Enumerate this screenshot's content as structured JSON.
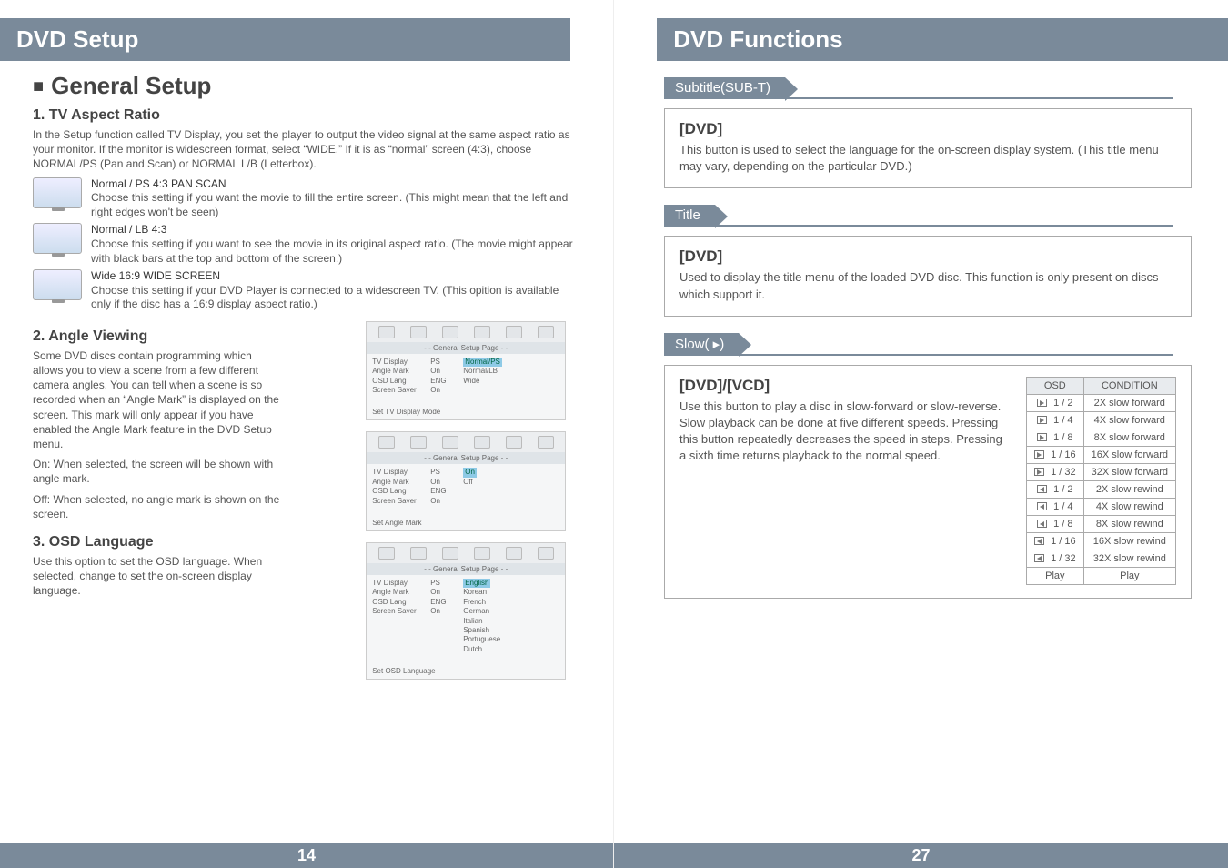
{
  "left": {
    "banner": "DVD Setup",
    "sectionTitle": "General Setup",
    "s1": {
      "heading": "1. TV Aspect Ratio",
      "intro": "In the Setup function called TV Display, you set the player to output the video signal at the same aspect ratio as your monitor. If the monitor is widescreen format, select “WIDE.” If it is as “normal” screen (4:3), choose NORMAL/PS (Pan and Scan) or NORMAL L/B (Letterbox).",
      "opts": [
        {
          "lead": "Normal / PS 4:3 PAN SCAN",
          "desc": "Choose this setting if you want the movie to fill the entire screen. (This might mean that the left and right edges won't be seen)"
        },
        {
          "lead": "Normal / LB 4:3",
          "desc": "Choose this setting if you want to see the movie in its original aspect ratio. (The movie might appear with black bars at the top and bottom of the screen.)"
        },
        {
          "lead": "Wide 16:9 WIDE SCREEN",
          "desc": "Choose this setting if your DVD Player is connected to a widescreen TV. (This opition is available only if the disc has a 16:9 display aspect ratio.)"
        }
      ]
    },
    "s2": {
      "heading": "2. Angle Viewing",
      "p": "Some DVD discs contain programming which allows you to view a scene from a few different camera angles. You can tell when a scene is so recorded when an “Angle Mark” is displayed on the screen. This mark will only appear if you have enabled the Angle Mark feature in the DVD Setup menu.",
      "on": "On: When selected, the screen will be shown with angle mark.",
      "off": "Off: When selected, no angle mark is shown on the screen."
    },
    "s3": {
      "heading": "3. OSD Language",
      "p": "Use this option to set the OSD language. When selected, change to set the on-screen display language."
    },
    "mock": {
      "head": "- - General Setup Page - -",
      "rows1_c1": [
        "TV Display",
        "Angle Mark",
        "OSD Lang",
        "Screen Saver"
      ],
      "rows1_c2": [
        "PS",
        "On",
        "ENG",
        "On"
      ],
      "rows1_c3": [
        "Normal/PS",
        "Normal/LB",
        "Wide",
        ""
      ],
      "foot1": "Set TV Display Mode",
      "rows2_c3": [
        "On",
        "Off",
        "",
        ""
      ],
      "foot2": "Set Angle Mark",
      "rows3_c3": [
        "English",
        "Korean",
        "French",
        "German",
        "Italian",
        "Spanish",
        "Portuguese",
        "Dutch"
      ],
      "foot3": "Set OSD Language"
    },
    "pageNum": "14"
  },
  "right": {
    "banner": "DVD Functions",
    "sub": {
      "tab": "Subtitle(SUB-T)",
      "h": "[DVD]",
      "t": "This button is used to select the language for the on-screen display system. (This title menu may vary, depending on the particular DVD.)"
    },
    "title": {
      "tab": "Title",
      "h": "[DVD]",
      "t": "Used to display the title menu of the loaded DVD disc. This function is only present on discs which support it."
    },
    "slow": {
      "tab": "Slow( ▸)",
      "h": "[DVD]/[VCD]",
      "t": "Use this button to play a disc in slow-forward or slow-reverse. Slow playback can be done at five different speeds. Pressing this button repeatedly decreases the speed in steps. Pressing a sixth time returns playback to the normal speed.",
      "thead_osd": "OSD",
      "thead_cond": "CONDITION",
      "rows": [
        {
          "dir": "fw",
          "osd": "1 / 2",
          "cond": "2X slow forward"
        },
        {
          "dir": "fw",
          "osd": "1 / 4",
          "cond": "4X slow forward"
        },
        {
          "dir": "fw",
          "osd": "1 / 8",
          "cond": "8X slow forward"
        },
        {
          "dir": "fw",
          "osd": "1 / 16",
          "cond": "16X slow forward"
        },
        {
          "dir": "fw",
          "osd": "1 / 32",
          "cond": "32X slow forward"
        },
        {
          "dir": "rw",
          "osd": "1 / 2",
          "cond": "2X slow rewind"
        },
        {
          "dir": "rw",
          "osd": "1 / 4",
          "cond": "4X slow rewind"
        },
        {
          "dir": "rw",
          "osd": "1 / 8",
          "cond": "8X slow rewind"
        },
        {
          "dir": "rw",
          "osd": "1 / 16",
          "cond": "16X slow rewind"
        },
        {
          "dir": "rw",
          "osd": "1 / 32",
          "cond": "32X slow rewind"
        }
      ],
      "play": "Play"
    },
    "pageNum": "27"
  }
}
